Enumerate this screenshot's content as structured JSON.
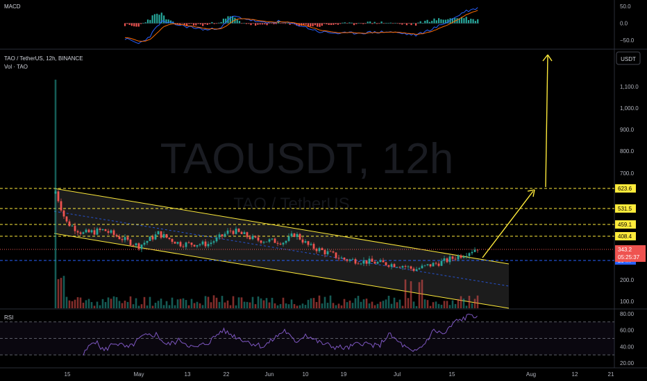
{
  "macd_panel": {
    "title": "MACD",
    "ticks": [
      {
        "value": 50,
        "label": "50.0"
      },
      {
        "value": 0,
        "label": "0.0"
      },
      {
        "value": -50,
        "label": "−50.0"
      }
    ]
  },
  "main_panel": {
    "symbol_line": "TAO / TetherUS, 12h, BINANCE",
    "volume_label": "Vol · TAO",
    "watermark_symbol": "TAOUSDT, 12h",
    "watermark_name": "TAO / TetherUS",
    "currency_button": "USDT",
    "price_ticks": [
      {
        "value": 1100,
        "label": "1,100.0"
      },
      {
        "value": 1000,
        "label": "1,000.0"
      },
      {
        "value": 900,
        "label": "900.0"
      },
      {
        "value": 800,
        "label": "800.0"
      },
      {
        "value": 700,
        "label": "700.0"
      },
      {
        "value": 200,
        "label": "200.0"
      },
      {
        "value": 100,
        "label": "100.0"
      }
    ],
    "levels": [
      {
        "value": 623.6,
        "label": "623.6"
      },
      {
        "value": 531.5,
        "label": "531.5"
      },
      {
        "value": 459.1,
        "label": "459.1"
      },
      {
        "value": 408.4,
        "label": "408.4"
      }
    ],
    "current_price": {
      "value": 343.2,
      "label": "343.2",
      "countdown": "05:25:37"
    },
    "blue_level": {
      "value": 294.7,
      "label": "294.7"
    },
    "colors": {
      "up": "#26a69a",
      "down": "#ef5350",
      "level": "#ffeb3b",
      "blue": "#2962ff"
    }
  },
  "rsi_panel": {
    "title": "RSI",
    "ticks": [
      {
        "value": 80,
        "label": "80.00"
      },
      {
        "value": 60,
        "label": "60.00"
      },
      {
        "value": 40,
        "label": "40.00"
      },
      {
        "value": 20,
        "label": "20.00"
      }
    ]
  },
  "x_axis": {
    "labels": [
      "15",
      "May",
      "13",
      "22",
      "Jun",
      "10",
      "19",
      "Jul",
      "15",
      "Aug",
      "12",
      "21"
    ]
  },
  "chart_data": [
    {
      "type": "line",
      "name": "MACD",
      "ylim": [
        -70,
        60
      ],
      "yticks": [
        50,
        0,
        -50
      ]
    },
    {
      "type": "candlestick",
      "title": "TAO / TetherUS, 12h, BINANCE",
      "ylim": [
        60,
        1200
      ],
      "yticks": [
        1100,
        1000,
        900,
        800,
        700,
        200,
        100
      ],
      "horizontal_levels": [
        623.6,
        531.5,
        459.1,
        408.4
      ],
      "last_price": 343.2,
      "blue_level": 294.7,
      "trend": "descending channel from ~620 (mid-April) to ~300 (late July), breakout to ~345, projected target above 1,200",
      "x_tick_labels": [
        "15",
        "May",
        "13",
        "22",
        "Jun",
        "10",
        "19",
        "Jul",
        "15",
        "Aug",
        "12",
        "21"
      ]
    },
    {
      "type": "line",
      "name": "RSI",
      "ylim": [
        15,
        85
      ],
      "yticks": [
        80,
        60,
        40,
        20
      ],
      "bands": [
        70,
        50,
        30
      ]
    }
  ]
}
